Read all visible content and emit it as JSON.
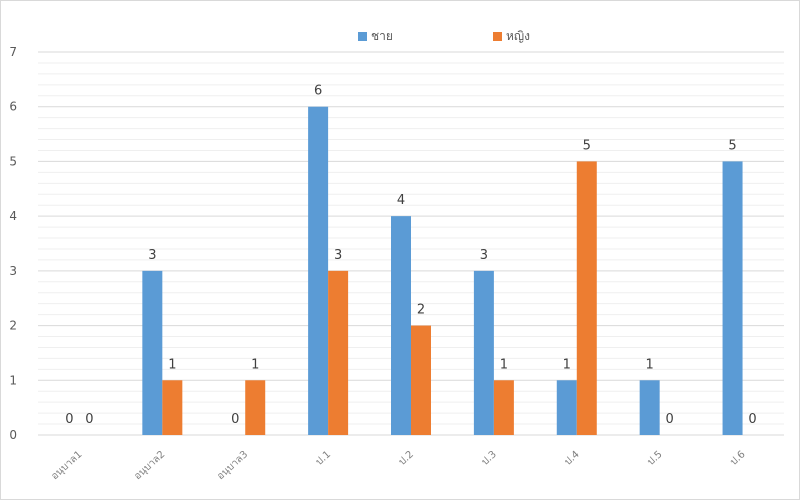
{
  "chart_data": {
    "type": "bar",
    "title": "",
    "xlabel": "",
    "ylabel": "",
    "categories": [
      "อนุบาล1",
      "อนุบาล2",
      "อนุบาล3",
      "ป.1",
      "ป.2",
      "ป.3",
      "ป.4",
      "ป.5",
      "ป.6"
    ],
    "series": [
      {
        "name": "ชาย",
        "color": "#5b9bd5",
        "values": [
          0,
          3,
          null,
          6,
          4,
          3,
          1,
          1,
          5
        ]
      },
      {
        "name": "หญิง",
        "color": "#ed7d31",
        "values": [
          0,
          1,
          1,
          3,
          2,
          1,
          5,
          0,
          0
        ]
      }
    ],
    "data_labels": {
      "ชาย": [
        "0",
        "3",
        "0",
        "6",
        "4",
        "3",
        "1",
        "1",
        "5"
      ],
      "หญิง": [
        "0",
        "1",
        "1",
        "3",
        "2",
        "1",
        "5",
        "0",
        "0"
      ]
    },
    "ylim": [
      0,
      7
    ],
    "yticks": [
      0,
      1,
      2,
      3,
      4,
      5,
      6,
      7
    ],
    "grid": true,
    "legend_position": "top-center"
  }
}
